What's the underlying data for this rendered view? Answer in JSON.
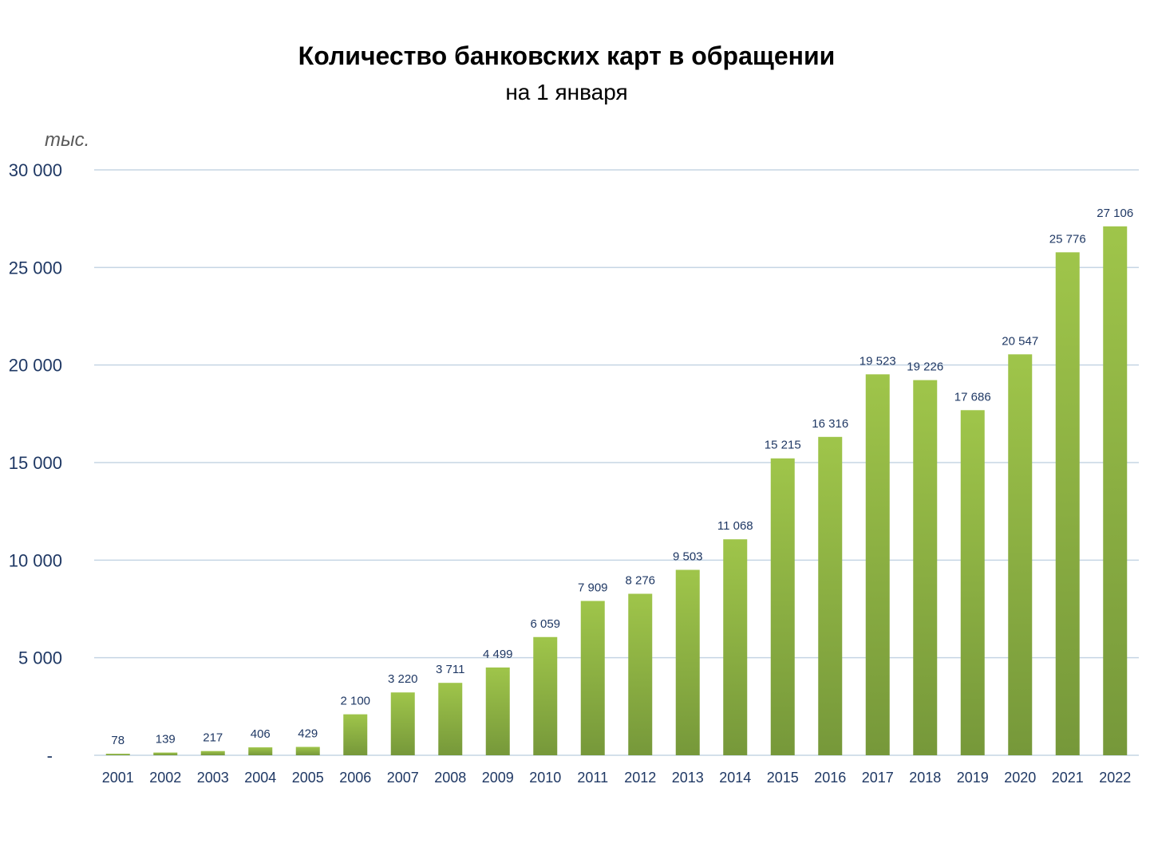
{
  "chart_data": {
    "type": "bar",
    "title": "Количество банковских карт в обращении",
    "subtitle": "на 1 января",
    "ylabel": "тыс.",
    "ylim": [
      0,
      30000
    ],
    "yticks": [
      0,
      5000,
      10000,
      15000,
      20000,
      25000,
      30000
    ],
    "ytick_labels": [
      "-",
      "5 000",
      "10 000",
      "15 000",
      "20 000",
      "25 000",
      "30 000"
    ],
    "categories": [
      "2001",
      "2002",
      "2003",
      "2004",
      "2005",
      "2006",
      "2007",
      "2008",
      "2009",
      "2010",
      "2011",
      "2012",
      "2013",
      "2014",
      "2015",
      "2016",
      "2017",
      "2018",
      "2019",
      "2020",
      "2021",
      "2022"
    ],
    "values": [
      78,
      139,
      217,
      406,
      429,
      2100,
      3220,
      3711,
      4499,
      6059,
      7909,
      8276,
      9503,
      11068,
      15215,
      16316,
      19523,
      19226,
      17686,
      20547,
      25776,
      27106
    ],
    "data_labels": [
      "78",
      "139",
      "217",
      "406",
      "429",
      "2 100",
      "3 220",
      "3 711",
      "4 499",
      "6 059",
      "7 909",
      "8 276",
      "9 503",
      "11 068",
      "15 215",
      "16 316",
      "19 523",
      "19 226",
      "17 686",
      "20 547",
      "25 776",
      "27 106"
    ],
    "grid": true,
    "legend": "none"
  },
  "colors": {
    "bar_top": "#9fc54a",
    "bar_bottom": "#76983a",
    "grid": "#c5d5e4",
    "text": "#1f3864"
  }
}
